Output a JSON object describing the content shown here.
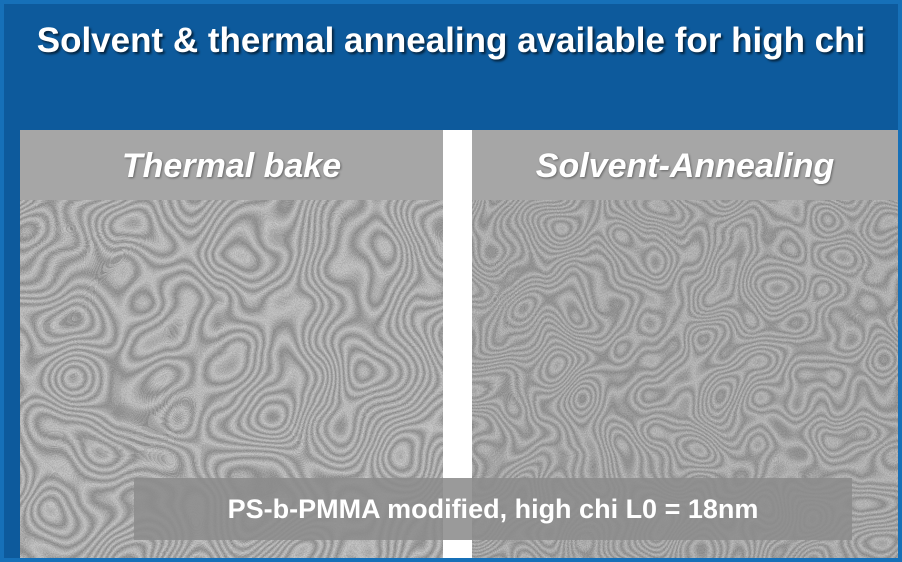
{
  "title": "Solvent & thermal annealing available for high chi",
  "panels": [
    {
      "label": "Thermal bake"
    },
    {
      "label": "Solvent-Annealing"
    }
  ],
  "caption": "PS-b-PMMA modified, high chi L0 = 18nm"
}
